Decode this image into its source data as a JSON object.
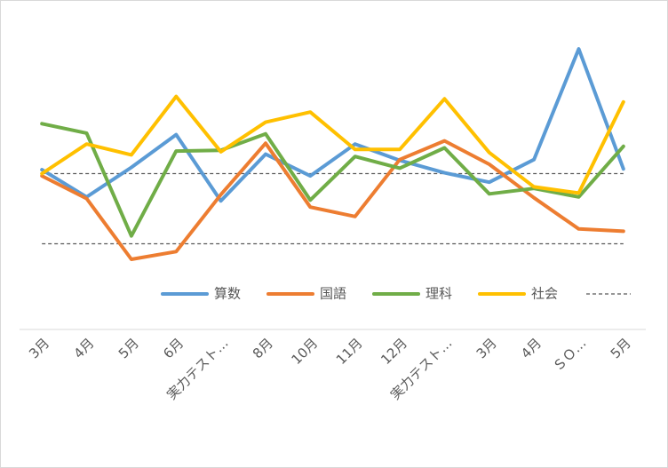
{
  "chart_data": {
    "type": "line",
    "categories": [
      "3月",
      "4月",
      "5月",
      "6月",
      "実力テスト…",
      "8月",
      "10月",
      "11月",
      "12月",
      "実力テスト…",
      "3月",
      "4月",
      "ＳＯ…",
      "5月"
    ],
    "series": [
      {
        "name": "算数",
        "color": "#5b9bd5",
        "values": [
          40.5,
          37.0,
          40.8,
          45.0,
          36.5,
          42.5,
          39.7,
          43.8,
          41.7,
          40.1,
          38.9,
          41.8,
          56.0,
          40.6
        ]
      },
      {
        "name": "国語",
        "color": "#ed7d31",
        "values": [
          39.7,
          36.8,
          29.0,
          30.0,
          37.3,
          43.9,
          35.7,
          34.5,
          41.8,
          44.2,
          41.2,
          36.9,
          32.9,
          32.6
        ]
      },
      {
        "name": "理科",
        "color": "#70ad47",
        "values": [
          46.4,
          45.2,
          32.0,
          42.9,
          43.0,
          45.1,
          36.6,
          42.2,
          40.7,
          43.3,
          37.4,
          38.1,
          37.0,
          43.5
        ]
      },
      {
        "name": "社会",
        "color": "#ffc000",
        "values": [
          40.0,
          43.8,
          42.4,
          49.9,
          42.8,
          46.6,
          47.9,
          43.1,
          43.1,
          49.6,
          42.7,
          38.3,
          37.5,
          49.2
        ]
      }
    ],
    "reference_lines": [
      {
        "value": 40.0,
        "style": "dashed",
        "color": "#595959"
      },
      {
        "value": 31.0,
        "style": "dashed",
        "color": "#595959"
      }
    ],
    "reference_legend_label": "",
    "ylim": [
      20,
      60
    ],
    "grid": false,
    "legend_position": "bottom",
    "title": "",
    "xlabel": "",
    "ylabel": ""
  }
}
